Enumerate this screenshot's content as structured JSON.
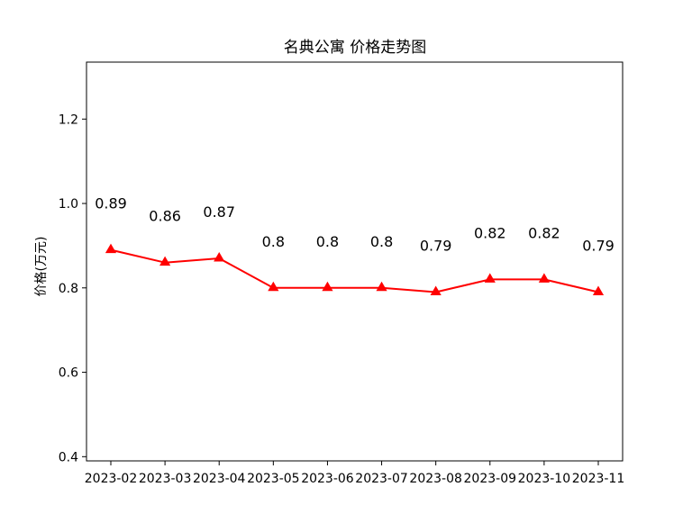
{
  "chart_data": {
    "type": "line",
    "title": "名典公寓 价格走势图",
    "xlabel": "",
    "ylabel": "价格(万元)",
    "categories": [
      "2023-02",
      "2023-03",
      "2023-04",
      "2023-05",
      "2023-06",
      "2023-07",
      "2023-08",
      "2023-09",
      "2023-10",
      "2023-11"
    ],
    "series": [
      {
        "values": [
          0.89,
          0.86,
          0.87,
          0.8,
          0.8,
          0.8,
          0.79,
          0.82,
          0.82,
          0.79
        ],
        "color": "#ff0000",
        "marker": "triangle-up"
      }
    ],
    "data_labels": [
      "0.89",
      "0.86",
      "0.87",
      "0.8",
      "0.8",
      "0.8",
      "0.79",
      "0.82",
      "0.82",
      "0.79"
    ],
    "ylim": [
      0.39,
      1.335
    ],
    "yticks": [
      0.4,
      0.6,
      0.8,
      1.0,
      1.2
    ],
    "ytick_labels": [
      "0.4",
      "0.6",
      "0.8",
      "1.0",
      "1.2"
    ],
    "grid": false,
    "legend": "none"
  }
}
